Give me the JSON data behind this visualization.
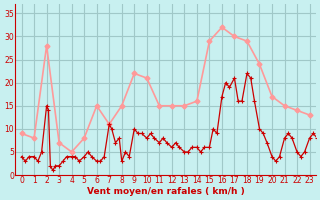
{
  "bg_color": "#c8f0f0",
  "grid_color": "#a0c8c8",
  "xlabel": "Vent moyen/en rafales ( km/h )",
  "xlabel_color": "#cc0000",
  "line1_color": "#cc0000",
  "line2_color": "#ff9999",
  "yticks": [
    0,
    5,
    10,
    15,
    20,
    25,
    30,
    35
  ],
  "xticks": [
    0,
    1,
    2,
    3,
    4,
    5,
    6,
    7,
    8,
    9,
    10,
    11,
    12,
    13,
    14,
    15,
    16,
    17,
    18,
    19,
    20,
    21,
    22,
    23
  ],
  "ylim": [
    0,
    37
  ],
  "xlim": [
    -0.5,
    23.5
  ],
  "gust_x": [
    0,
    1,
    2,
    3,
    4,
    5,
    6,
    7,
    8,
    9,
    10,
    11,
    12,
    13,
    14,
    15,
    16,
    17,
    18,
    19,
    20,
    21,
    22,
    23
  ],
  "gust_y": [
    9,
    8,
    28,
    7,
    5,
    8,
    15,
    11,
    15,
    22,
    21,
    15,
    15,
    15,
    16,
    29,
    32,
    30,
    29,
    24,
    17,
    15,
    14,
    13
  ],
  "avg_x": [
    0,
    0.3,
    0.6,
    1.0,
    1.3,
    1.6,
    2.0,
    2.15,
    2.3,
    2.5,
    2.7,
    3.0,
    3.3,
    3.6,
    4.0,
    4.3,
    4.6,
    5.0,
    5.3,
    5.6,
    6.0,
    6.3,
    6.6,
    7.0,
    7.2,
    7.5,
    7.8,
    8.0,
    8.3,
    8.6,
    9.0,
    9.3,
    9.6,
    10.0,
    10.3,
    10.6,
    11.0,
    11.3,
    11.6,
    12.0,
    12.3,
    12.6,
    13.0,
    13.3,
    13.6,
    14.0,
    14.3,
    14.6,
    15.0,
    15.3,
    15.6,
    16.0,
    16.3,
    16.6,
    17.0,
    17.3,
    17.6,
    18.0,
    18.3,
    18.6,
    19.0,
    19.3,
    19.6,
    20.0,
    20.3,
    20.6,
    21.0,
    21.3,
    21.6,
    22.0,
    22.3,
    22.6,
    23.0,
    23.3,
    23.6
  ],
  "avg_y": [
    4,
    3,
    4,
    4,
    3,
    5,
    15,
    14,
    2,
    1,
    2,
    2,
    3,
    4,
    4,
    4,
    3,
    4,
    5,
    4,
    3,
    3,
    4,
    11,
    10,
    7,
    8,
    3,
    5,
    4,
    10,
    9,
    9,
    8,
    9,
    8,
    7,
    8,
    7,
    6,
    7,
    6,
    5,
    5,
    6,
    6,
    5,
    6,
    6,
    10,
    9,
    17,
    20,
    19,
    21,
    16,
    16,
    22,
    21,
    16,
    10,
    9,
    7,
    4,
    3,
    4,
    8,
    9,
    8,
    5,
    4,
    5,
    8,
    9,
    8
  ]
}
